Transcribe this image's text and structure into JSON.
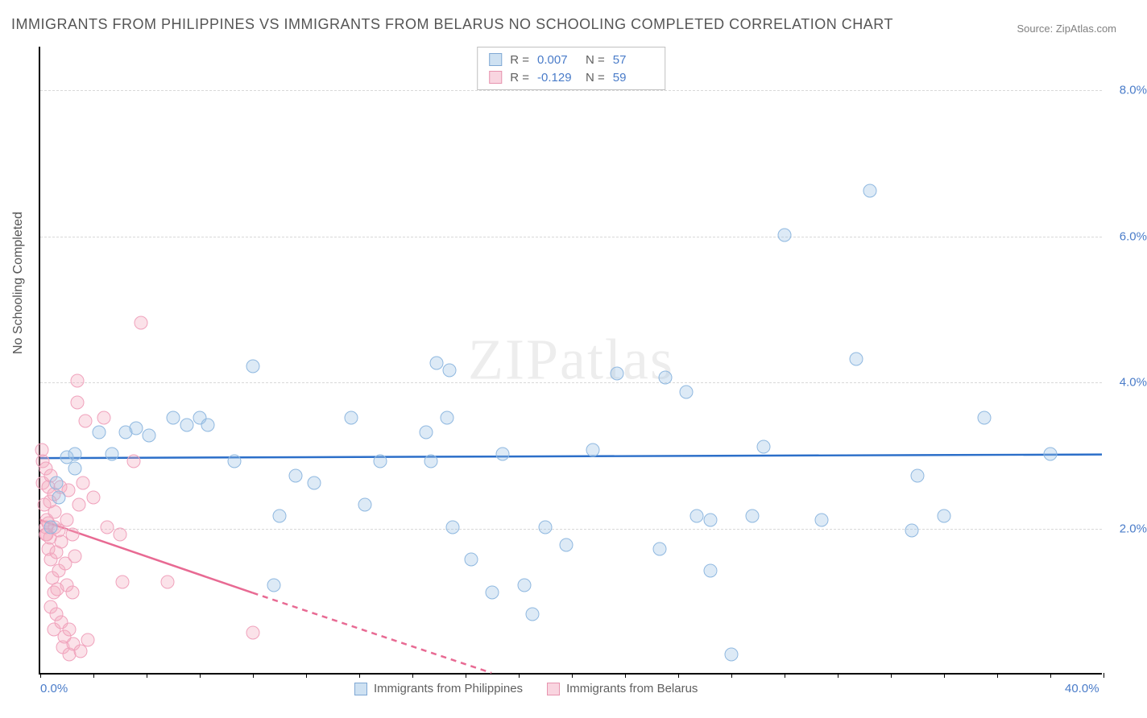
{
  "title": "IMMIGRANTS FROM PHILIPPINES VS IMMIGRANTS FROM BELARUS NO SCHOOLING COMPLETED CORRELATION CHART",
  "source": "Source: ZipAtlas.com",
  "y_axis_label": "No Schooling Completed",
  "watermark": "ZIPatlas",
  "chart": {
    "type": "scatter",
    "xlim": [
      0,
      40
    ],
    "ylim": [
      0,
      8.6
    ],
    "x_ticks": [
      0,
      40
    ],
    "x_tick_labels": [
      "0.0%",
      "40.0%"
    ],
    "x_minor_ticks": [
      0,
      2,
      4,
      6,
      8,
      10,
      12,
      14,
      16,
      18,
      20,
      22,
      24,
      26,
      28,
      30,
      32,
      34,
      36,
      38,
      40
    ],
    "y_ticks": [
      2,
      4,
      6,
      8
    ],
    "y_tick_labels": [
      "2.0%",
      "4.0%",
      "6.0%",
      "8.0%"
    ],
    "background_color": "#ffffff",
    "grid_color": "#d8d8d8",
    "axis_color": "#000000",
    "tick_label_color": "#4a7cc9"
  },
  "series": {
    "blue": {
      "name": "Immigrants from Philippines",
      "color_fill": "rgba(157,195,230,0.35)",
      "color_stroke": "#8fb8e0",
      "trend_color": "#2c6fc9",
      "R": "0.007",
      "N": "57",
      "trend_line": {
        "x1": 0,
        "y1": 2.95,
        "x2": 40,
        "y2": 3.0
      },
      "points": [
        [
          0.4,
          2.0
        ],
        [
          0.6,
          2.6
        ],
        [
          0.7,
          2.4
        ],
        [
          1.0,
          2.95
        ],
        [
          1.3,
          2.8
        ],
        [
          1.3,
          3.0
        ],
        [
          2.2,
          3.3
        ],
        [
          2.7,
          3.0
        ],
        [
          3.2,
          3.3
        ],
        [
          3.6,
          3.35
        ],
        [
          4.1,
          3.25
        ],
        [
          5.0,
          3.5
        ],
        [
          5.5,
          3.4
        ],
        [
          6.0,
          3.5
        ],
        [
          6.3,
          3.4
        ],
        [
          7.3,
          2.9
        ],
        [
          8.0,
          4.2
        ],
        [
          8.8,
          1.2
        ],
        [
          9.0,
          2.15
        ],
        [
          9.6,
          2.7
        ],
        [
          10.3,
          2.6
        ],
        [
          11.7,
          3.5
        ],
        [
          12.2,
          2.3
        ],
        [
          12.8,
          2.9
        ],
        [
          14.5,
          3.3
        ],
        [
          14.7,
          2.9
        ],
        [
          15.3,
          3.5
        ],
        [
          15.5,
          2.0
        ],
        [
          14.9,
          4.25
        ],
        [
          15.4,
          4.15
        ],
        [
          16.2,
          1.55
        ],
        [
          17.0,
          1.1
        ],
        [
          17.4,
          3.0
        ],
        [
          18.2,
          1.2
        ],
        [
          18.5,
          0.8
        ],
        [
          19.0,
          2.0
        ],
        [
          19.8,
          1.75
        ],
        [
          20.8,
          3.05
        ],
        [
          21.7,
          4.1
        ],
        [
          23.3,
          1.7
        ],
        [
          23.5,
          4.05
        ],
        [
          24.3,
          3.85
        ],
        [
          24.7,
          2.15
        ],
        [
          25.2,
          2.1
        ],
        [
          25.2,
          1.4
        ],
        [
          26.0,
          0.25
        ],
        [
          26.8,
          2.15
        ],
        [
          27.2,
          3.1
        ],
        [
          28.0,
          6.0
        ],
        [
          29.4,
          2.1
        ],
        [
          30.7,
          4.3
        ],
        [
          31.2,
          6.6
        ],
        [
          32.8,
          1.95
        ],
        [
          33.0,
          2.7
        ],
        [
          34.0,
          2.15
        ],
        [
          35.5,
          3.5
        ],
        [
          38.0,
          3.0
        ]
      ]
    },
    "pink": {
      "name": "Immigrants from Belarus",
      "color_fill": "rgba(244,171,193,0.35)",
      "color_stroke": "#f0a2bc",
      "trend_color": "#e86a93",
      "R": "-0.129",
      "N": "59",
      "trend_line_solid": {
        "x1": 0,
        "y1": 2.1,
        "x2": 8,
        "y2": 1.1
      },
      "trend_line_dashed": {
        "x1": 8,
        "y1": 1.1,
        "x2": 17,
        "y2": 0.0
      },
      "points": [
        [
          0.05,
          3.05
        ],
        [
          0.1,
          2.9
        ],
        [
          0.1,
          2.6
        ],
        [
          0.15,
          2.3
        ],
        [
          0.2,
          2.8
        ],
        [
          0.2,
          2.0
        ],
        [
          0.2,
          1.9
        ],
        [
          0.25,
          2.1
        ],
        [
          0.25,
          1.9
        ],
        [
          0.3,
          2.05
        ],
        [
          0.3,
          2.55
        ],
        [
          0.3,
          1.7
        ],
        [
          0.35,
          2.35
        ],
        [
          0.35,
          1.85
        ],
        [
          0.4,
          1.55
        ],
        [
          0.4,
          2.7
        ],
        [
          0.4,
          0.9
        ],
        [
          0.45,
          1.3
        ],
        [
          0.5,
          2.45
        ],
        [
          0.5,
          1.1
        ],
        [
          0.5,
          0.6
        ],
        [
          0.55,
          2.0
        ],
        [
          0.55,
          2.2
        ],
        [
          0.6,
          1.65
        ],
        [
          0.6,
          0.8
        ],
        [
          0.65,
          1.15
        ],
        [
          0.7,
          1.95
        ],
        [
          0.7,
          1.4
        ],
        [
          0.75,
          2.55
        ],
        [
          0.8,
          1.8
        ],
        [
          0.8,
          0.7
        ],
        [
          0.85,
          0.35
        ],
        [
          0.9,
          0.5
        ],
        [
          0.95,
          1.5
        ],
        [
          1.0,
          2.1
        ],
        [
          1.0,
          1.2
        ],
        [
          1.05,
          2.5
        ],
        [
          1.1,
          0.25
        ],
        [
          1.1,
          0.6
        ],
        [
          1.2,
          1.9
        ],
        [
          1.2,
          1.1
        ],
        [
          1.25,
          0.4
        ],
        [
          1.3,
          1.6
        ],
        [
          1.4,
          4.0
        ],
        [
          1.4,
          3.7
        ],
        [
          1.45,
          2.3
        ],
        [
          1.5,
          0.3
        ],
        [
          1.6,
          2.6
        ],
        [
          1.7,
          3.45
        ],
        [
          1.8,
          0.45
        ],
        [
          2.0,
          2.4
        ],
        [
          2.4,
          3.5
        ],
        [
          2.5,
          2.0
        ],
        [
          3.0,
          1.9
        ],
        [
          3.1,
          1.25
        ],
        [
          3.5,
          2.9
        ],
        [
          3.8,
          4.8
        ],
        [
          4.8,
          1.25
        ],
        [
          8.0,
          0.55
        ]
      ]
    }
  },
  "stats_legend_labels": {
    "R": "R =",
    "N": "N ="
  },
  "bottom_legend": [
    {
      "key": "blue",
      "label": "Immigrants from Philippines"
    },
    {
      "key": "pink",
      "label": "Immigrants from Belarus"
    }
  ]
}
